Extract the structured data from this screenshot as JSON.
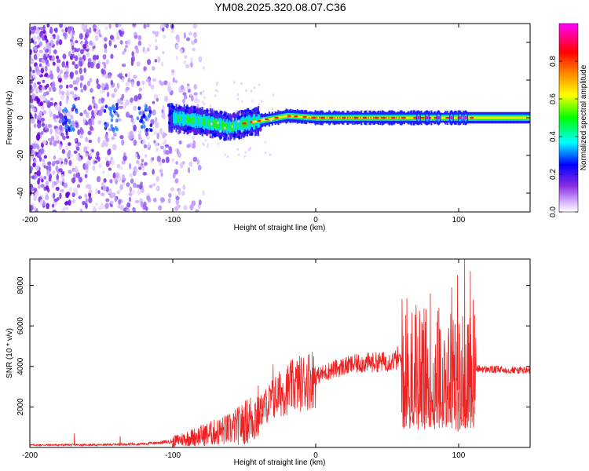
{
  "title": "YM08.2025.320.08.07.C36",
  "chart_data": [
    {
      "type": "heatmap",
      "xlabel": "Height of straight line (km)",
      "ylabel": "Frequency (Hz)",
      "xlim": [
        -200,
        150
      ],
      "ylim": [
        -50,
        50
      ],
      "xticks": [
        -200,
        -100,
        0,
        100
      ],
      "yticks": [
        -40,
        -20,
        0,
        20,
        40
      ],
      "colorbar": {
        "label": "Normalized spectral amplitude",
        "range": [
          0,
          1
        ],
        "ticks": [
          0.0,
          0.2,
          0.4,
          0.6,
          0.8
        ],
        "colormap": [
          "#ffffff",
          "#8a2be2",
          "#0000ff",
          "#00ffff",
          "#00ff00",
          "#ffff00",
          "#ff0000",
          "#ff00ff"
        ]
      },
      "band_center_hz": [
        {
          "x": -100,
          "f": 0
        },
        {
          "x": -80,
          "f": -2
        },
        {
          "x": -60,
          "f": -5
        },
        {
          "x": -50,
          "f": -3
        },
        {
          "x": -35,
          "f": -1
        },
        {
          "x": -20,
          "f": 1
        },
        {
          "x": 0,
          "f": 0
        },
        {
          "x": 100,
          "f": 0
        },
        {
          "x": 150,
          "f": 0
        }
      ]
    },
    {
      "type": "line",
      "xlabel": "Height of straight line (km)",
      "ylabel": "SNR (10 * v/v)",
      "xlim": [
        -200,
        150
      ],
      "ylim": [
        0,
        9300
      ],
      "xticks": [
        -200,
        -100,
        0,
        100
      ],
      "yticks": [
        2000,
        4000,
        6000,
        8000
      ],
      "series": [
        {
          "name": "SNR",
          "color": "#ee2222",
          "envelope_x": [
            -200,
            -150,
            -120,
            -100,
            -80,
            -60,
            -50,
            -40,
            -30,
            -20,
            -10,
            0,
            10,
            20,
            30,
            40,
            50,
            60,
            65,
            70,
            80,
            90,
            100,
            105,
            110,
            120,
            150
          ],
          "envelope_y": [
            120,
            130,
            180,
            300,
            600,
            900,
            1200,
            1700,
            2400,
            2900,
            3200,
            3500,
            3800,
            4000,
            4150,
            4200,
            4250,
            4350,
            4300,
            4200,
            4000,
            3800,
            3800,
            3800,
            3900,
            3850,
            3800
          ],
          "spikes": [
            {
              "x": -169,
              "y": 700
            },
            {
              "x": -137,
              "y": 560
            },
            {
              "x": -30,
              "y": 4100
            },
            {
              "x": -20,
              "y": 3000
            },
            {
              "x": -10,
              "y": 3400
            },
            {
              "x": 57,
              "y": 5000
            },
            {
              "x": 74,
              "y": 6200
            },
            {
              "x": 80,
              "y": 7600
            },
            {
              "x": 86,
              "y": 6900
            },
            {
              "x": 95,
              "y": 7900
            },
            {
              "x": 99,
              "y": 8500
            },
            {
              "x": 104,
              "y": 9300
            },
            {
              "x": 108,
              "y": 8700
            },
            {
              "x": 110,
              "y": 7300
            }
          ]
        }
      ]
    }
  ]
}
